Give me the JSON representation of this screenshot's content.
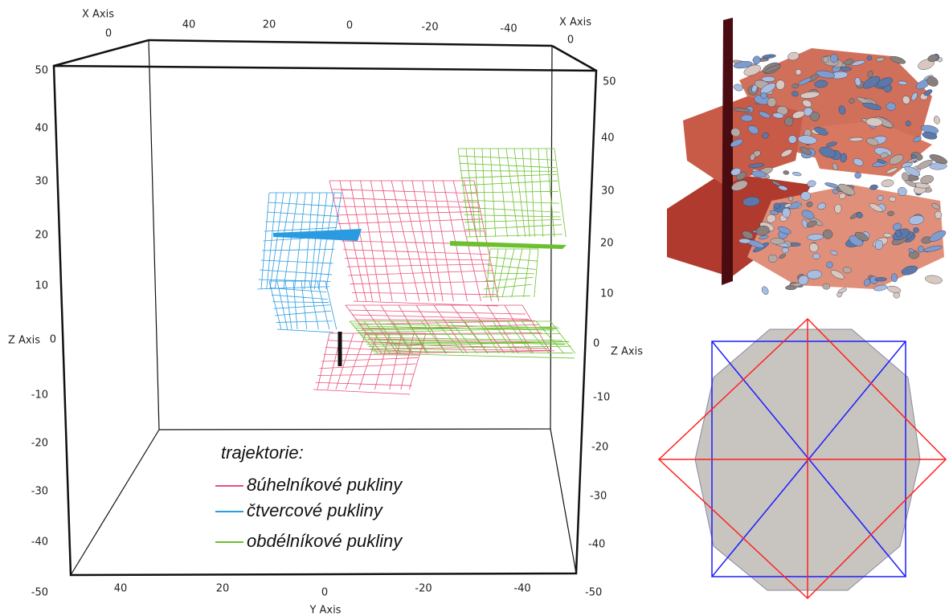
{
  "plot": {
    "top_axis": {
      "title_left": "X Axis",
      "title_right": "X Axis",
      "ticks": [
        0,
        40,
        20,
        0,
        -20,
        -40,
        0
      ]
    },
    "left_axis": {
      "title": "Z Axis",
      "ticks": [
        50,
        40,
        30,
        20,
        10,
        0,
        -10,
        -20,
        -30,
        -40,
        -50
      ]
    },
    "right_axis": {
      "title": "Z Axis",
      "ticks": [
        50,
        40,
        30,
        20,
        10,
        0,
        -10,
        -20,
        -30,
        -40,
        -50
      ]
    },
    "bottom_axis": {
      "title": "Y Axis",
      "ticks": [
        40,
        20,
        0,
        -20,
        -40
      ]
    },
    "legend": {
      "title": "trajektorie:",
      "items": [
        {
          "label": "8úhelníkové pukliny",
          "color": "#e8507a"
        },
        {
          "label": "čtvercové pukliny",
          "color": "#2a9be0"
        },
        {
          "label": "obdélníkové pukliny",
          "color": "#6cc030"
        }
      ]
    }
  }
}
